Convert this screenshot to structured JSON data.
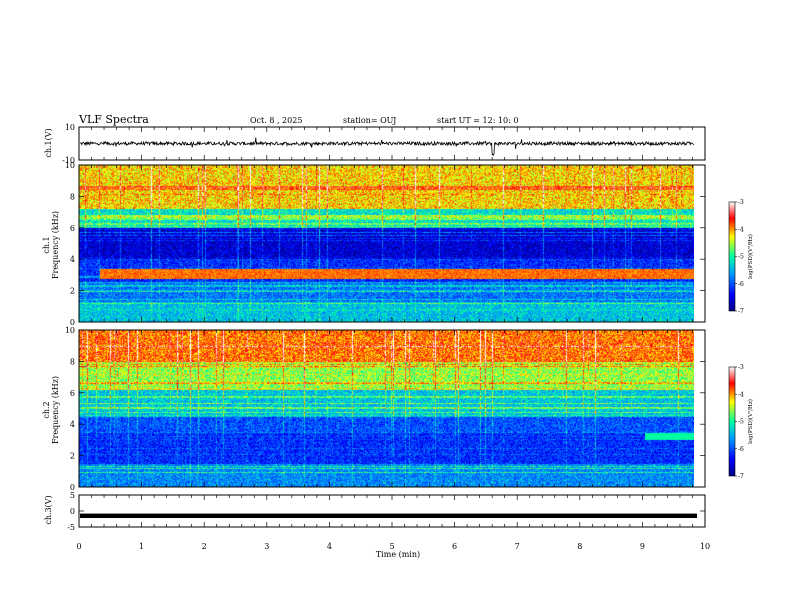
{
  "header": {
    "title": "VLF Spectra",
    "date": "Oct. 8  , 2025",
    "station": "station= OUJ",
    "start": "start  UT =   12: 10: 0"
  },
  "colorbar": {
    "label": "log(PSD)(V²/Hz)",
    "ticks": [
      "-3",
      "-4",
      "-5",
      "-6",
      "-7"
    ],
    "range": [
      -7,
      -3
    ],
    "colors": [
      "#000080",
      "#0000ff",
      "#00a0ff",
      "#00ffa0",
      "#ffff00",
      "#ff0000",
      "#ffffff"
    ]
  },
  "chart_data": [
    {
      "type": "line",
      "name": "ch1-waveform",
      "ylabel": "ch.1(V)",
      "ylim": [
        -10,
        10
      ],
      "ytick_labels": [
        "10",
        "-10"
      ],
      "xlim": [
        0,
        10
      ],
      "description_values": {
        "baseline": 0,
        "approx_amplitude": 1
      }
    },
    {
      "type": "heatmap",
      "name": "ch1-spectrogram",
      "title": "ch.1",
      "ylabel": "Frequency  (kHz)",
      "ylim": [
        0,
        10
      ],
      "ytick_labels": [
        "10",
        "8",
        "6",
        "4",
        "2",
        "0"
      ],
      "xlim": [
        0,
        10
      ],
      "data_end_min": 9.83,
      "zlim": [
        -7,
        -3
      ]
    },
    {
      "type": "heatmap",
      "name": "ch2-spectrogram",
      "title": "ch.2",
      "ylabel": "Frequency  (kHz)",
      "ylim": [
        0,
        10
      ],
      "ytick_labels": [
        "10",
        "8",
        "6",
        "4",
        "2",
        "0"
      ],
      "xlim": [
        0,
        10
      ],
      "data_end_min": 9.83,
      "zlim": [
        -7,
        -3
      ]
    },
    {
      "type": "line",
      "name": "ch3-waveform",
      "ylabel": "ch.3(V)",
      "ylim": [
        -5,
        5
      ],
      "ytick_labels": [
        "5",
        "0",
        "-5"
      ],
      "xlim": [
        0,
        10
      ],
      "constant_value": -1.5
    }
  ],
  "xaxis": {
    "label": "Time  (min)",
    "ticks": [
      "0",
      "1",
      "2",
      "3",
      "4",
      "5",
      "6",
      "7",
      "8",
      "9",
      "10"
    ]
  }
}
